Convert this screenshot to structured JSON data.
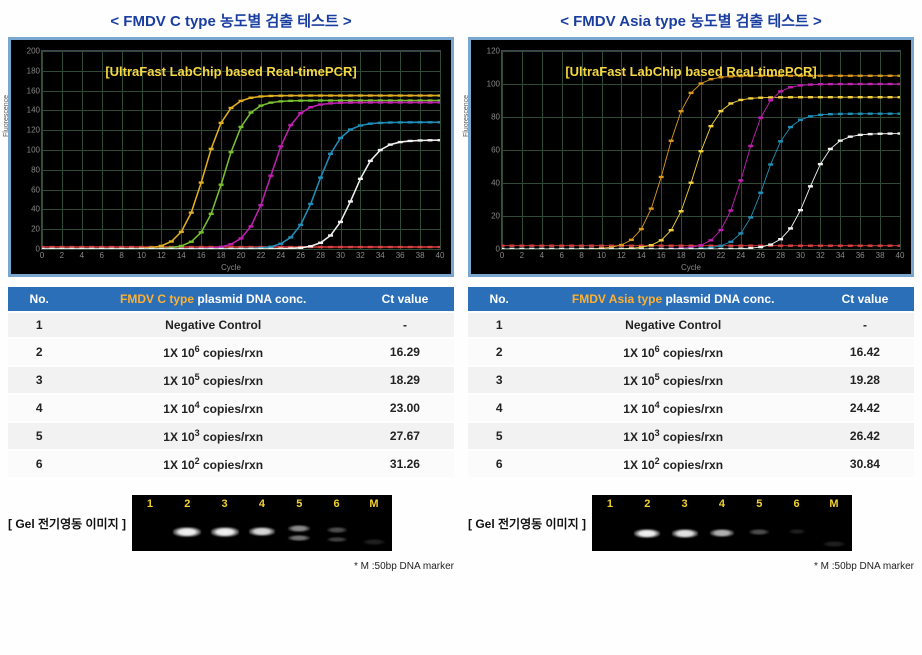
{
  "panels": [
    {
      "title": "< FMDV  C type 농도별 검출 테스트 >",
      "chart_subtitle": "[UltraFast LabChip based Real-timePCR]",
      "ylim": [
        0,
        200
      ],
      "ytick_step": 20,
      "xlim": [
        0,
        40
      ],
      "xtick_step": 2,
      "xlabel": "Cycle",
      "ylabel": "Fluorescence",
      "grid_color": "#2f4a35",
      "bg_color": "#000000",
      "curves": [
        {
          "color": "#d84040",
          "amp": 0,
          "ct": 40,
          "slope": 1.0
        },
        {
          "color": "#e0b020",
          "amp": 155,
          "ct": 16.3,
          "slope": 0.9
        },
        {
          "color": "#78c030",
          "amp": 150,
          "ct": 18.3,
          "slope": 0.9
        },
        {
          "color": "#c020b0",
          "amp": 148,
          "ct": 23.0,
          "slope": 0.85
        },
        {
          "color": "#208fb8",
          "amp": 128,
          "ct": 27.7,
          "slope": 0.85
        },
        {
          "color": "#f0f0f0",
          "amp": 110,
          "ct": 31.3,
          "slope": 0.85
        }
      ],
      "table": {
        "headers": {
          "no": "No.",
          "mid_pre": "FMDV C type",
          "mid_post": " plasmid DNA conc.",
          "ct": "Ct value"
        },
        "rows": [
          {
            "no": "1",
            "conc_html": "Negative Control",
            "ct": "-"
          },
          {
            "no": "2",
            "conc_html": "1X 10<span class='sup'>6</span> copies/rxn",
            "ct": "16.29"
          },
          {
            "no": "3",
            "conc_html": "1X 10<span class='sup'>5</span> copies/rxn",
            "ct": "18.29"
          },
          {
            "no": "4",
            "conc_html": "1X 10<span class='sup'>4</span> copies/rxn",
            "ct": "23.00"
          },
          {
            "no": "5",
            "conc_html": "1X 10<span class='sup'>3</span> copies/rxn",
            "ct": "27.67"
          },
          {
            "no": "6",
            "conc_html": "1X 10<span class='sup'>2</span> copies/rxn",
            "ct": "31.26"
          }
        ]
      },
      "gel": {
        "label": "[ Gel 전기영동 이미지 ]",
        "lanes": [
          "1",
          "2",
          "3",
          "4",
          "5",
          "6",
          "M"
        ],
        "bands": [
          {
            "lane": 1,
            "y": 32,
            "w": 28,
            "h": 10,
            "opacity": 0.95
          },
          {
            "lane": 2,
            "y": 32,
            "w": 28,
            "h": 10,
            "opacity": 0.95
          },
          {
            "lane": 3,
            "y": 32,
            "w": 26,
            "h": 9,
            "opacity": 0.85
          },
          {
            "lane": 4,
            "y": 30,
            "w": 22,
            "h": 7,
            "opacity": 0.55
          },
          {
            "lane": 4,
            "y": 40,
            "w": 22,
            "h": 6,
            "opacity": 0.45
          },
          {
            "lane": 5,
            "y": 32,
            "w": 20,
            "h": 6,
            "opacity": 0.3
          },
          {
            "lane": 5,
            "y": 42,
            "w": 20,
            "h": 5,
            "opacity": 0.25
          },
          {
            "lane": 6,
            "y": 44,
            "w": 22,
            "h": 6,
            "opacity": 0.12
          }
        ]
      },
      "footnote": "* M :50bp DNA marker"
    },
    {
      "title": "< FMDV  Asia type 농도별 검출 테스트 >",
      "chart_subtitle": "[UltraFast LabChip based Real-timePCR]",
      "ylim": [
        0,
        120
      ],
      "ytick_step": 20,
      "xlim": [
        0,
        40
      ],
      "xtick_step": 2,
      "xlabel": "Cycle",
      "ylabel": "Fluorescence",
      "grid_color": "#2f4a35",
      "bg_color": "#000000",
      "curves": [
        {
          "color": "#d84040",
          "amp": 0,
          "ct": 40,
          "slope": 1.0
        },
        {
          "color": "#d89820",
          "amp": 105,
          "ct": 16.4,
          "slope": 0.85
        },
        {
          "color": "#f2d040",
          "amp": 92,
          "ct": 19.3,
          "slope": 0.85
        },
        {
          "color": "#c020b0",
          "amp": 100,
          "ct": 24.4,
          "slope": 0.85
        },
        {
          "color": "#208fb8",
          "amp": 82,
          "ct": 26.4,
          "slope": 0.85
        },
        {
          "color": "#f0f0f0",
          "amp": 70,
          "ct": 30.8,
          "slope": 0.85
        }
      ],
      "table": {
        "headers": {
          "no": "No.",
          "mid_pre": "FMDV Asia type",
          "mid_post": " plasmid DNA conc.",
          "ct": "Ct value"
        },
        "rows": [
          {
            "no": "1",
            "conc_html": "Negative Control",
            "ct": "-"
          },
          {
            "no": "2",
            "conc_html": "1X 10<span class='sup'>6</span> copies/rxn",
            "ct": "16.42"
          },
          {
            "no": "3",
            "conc_html": "1X 10<span class='sup'>5</span> copies/rxn",
            "ct": "19.28"
          },
          {
            "no": "4",
            "conc_html": "1X 10<span class='sup'>4</span> copies/rxn",
            "ct": "24.42"
          },
          {
            "no": "5",
            "conc_html": "1X 10<span class='sup'>3</span> copies/rxn",
            "ct": "26.42"
          },
          {
            "no": "6",
            "conc_html": "1X 10<span class='sup'>2</span> copies/rxn",
            "ct": "30.84"
          }
        ]
      },
      "gel": {
        "label": "[ Gel 전기영동 이미지 ]",
        "lanes": [
          "1",
          "2",
          "3",
          "4",
          "5",
          "6",
          "M"
        ],
        "bands": [
          {
            "lane": 1,
            "y": 34,
            "w": 26,
            "h": 9,
            "opacity": 0.95
          },
          {
            "lane": 2,
            "y": 34,
            "w": 26,
            "h": 9,
            "opacity": 0.9
          },
          {
            "lane": 3,
            "y": 34,
            "w": 24,
            "h": 8,
            "opacity": 0.7
          },
          {
            "lane": 4,
            "y": 34,
            "w": 20,
            "h": 6,
            "opacity": 0.3
          },
          {
            "lane": 5,
            "y": 34,
            "w": 16,
            "h": 5,
            "opacity": 0.12
          },
          {
            "lane": 6,
            "y": 46,
            "w": 22,
            "h": 6,
            "opacity": 0.12
          }
        ]
      },
      "footnote": "* M :50bp DNA marker"
    }
  ]
}
